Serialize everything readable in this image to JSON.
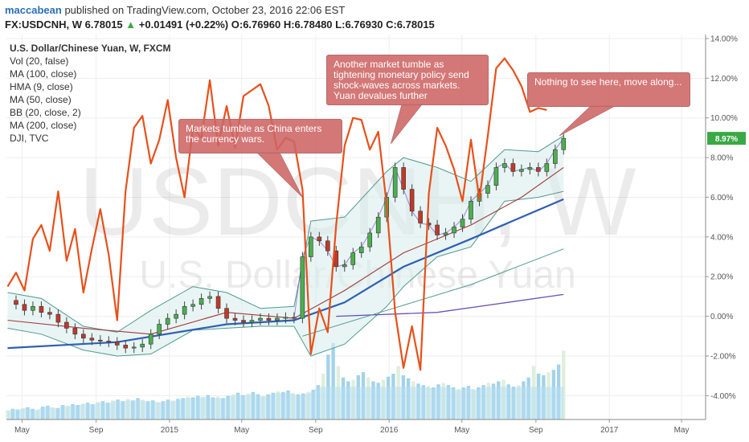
{
  "header": {
    "author": "maccabean",
    "published_text": "published on TradingView.com, October 23, 2016 22:06 EST",
    "symbol": "FX:USDCNH, W",
    "last": "6.78015",
    "change": "+0.01491 (+0.22%)",
    "o_label": "O:",
    "o_value": "6.76960",
    "h_label": "H:",
    "h_value": "6.78480",
    "l_label": "L:",
    "l_value": "6.76930",
    "c_label": "C:",
    "c_value": "6.78015"
  },
  "watermark": {
    "big": "USDCNH, W",
    "small": "U.S. Dollar/Chinese Yuan"
  },
  "indicators": [
    "U.S. Dollar/Chinese Yuan, W, FXCM",
    "Vol (20, false)",
    "MA (100, close)",
    "HMA (9, close)",
    "MA (50, close)",
    "BB (20, close, 2)",
    "MA (200, close)",
    "DJI, TVC"
  ],
  "annotations": [
    {
      "id": "a1",
      "text": "Markets tumble as China enters the currency wars."
    },
    {
      "id": "a2",
      "text": "Another market tumble as tightening monetary policy send shock-waves across markets. Yuan devalues further"
    },
    {
      "id": "a3",
      "text": "Nothing to see here, move along..."
    }
  ],
  "chart_data": {
    "type": "line",
    "y_axis": {
      "ticks": [
        "14.00%",
        "12.00%",
        "10.00%",
        "8.00%",
        "6.00%",
        "4.00%",
        "2.00%",
        "0.00%",
        "-2.00%",
        "-4.00%"
      ],
      "ylim": [
        -5.2,
        14.2
      ],
      "position": "right",
      "current_label": "8.97%"
    },
    "x_axis": {
      "ticks": [
        "May",
        "Sep",
        "2015",
        "May",
        "Sep",
        "2016",
        "May",
        "Sep",
        "2017",
        "May"
      ],
      "tick_dates": [
        "2014-05-01",
        "2014-09-01",
        "2015-01-01",
        "2015-05-01",
        "2015-09-01",
        "2016-01-01",
        "2016-05-01",
        "2016-09-01",
        "2017-01-01",
        "2017-05-01"
      ],
      "xlim": [
        "2014-04-05",
        "2017-06-10"
      ]
    },
    "colors": {
      "candle_up": "#4caf50",
      "candle_down": "#c0392b",
      "dji": "#e8501a",
      "ma100": "#2f5fb3",
      "ma200": "#6a52b5",
      "ma50": "#a33a3a",
      "bb": "#4f9a8f",
      "bb_fill": "#d8eeec",
      "hma": "#8a6ccf",
      "volume": "#93cbe6",
      "volume_area": "#b7def1",
      "last_label": "#3aa845"
    },
    "price_pct": [
      [
        "2014-04-07",
        0.8
      ],
      [
        "2014-04-21",
        0.6
      ],
      [
        "2014-05-05",
        0.3
      ],
      [
        "2014-05-19",
        0.5
      ],
      [
        "2014-06-02",
        0.2
      ],
      [
        "2014-06-16",
        0.1
      ],
      [
        "2014-06-30",
        -0.3
      ],
      [
        "2014-07-14",
        -0.6
      ],
      [
        "2014-07-28",
        -0.9
      ],
      [
        "2014-08-11",
        -1.1
      ],
      [
        "2014-08-25",
        -1.2
      ],
      [
        "2014-09-08",
        -1.25
      ],
      [
        "2014-09-22",
        -1.3
      ],
      [
        "2014-10-06",
        -1.45
      ],
      [
        "2014-10-20",
        -1.6
      ],
      [
        "2014-11-03",
        -1.55
      ],
      [
        "2014-11-17",
        -1.4
      ],
      [
        "2014-12-01",
        -0.9
      ],
      [
        "2014-12-15",
        -0.4
      ],
      [
        "2014-12-29",
        -0.1
      ],
      [
        "2015-01-12",
        0.1
      ],
      [
        "2015-01-26",
        0.5
      ],
      [
        "2015-02-09",
        0.6
      ],
      [
        "2015-02-23",
        0.9
      ],
      [
        "2015-03-09",
        1.0
      ],
      [
        "2015-03-23",
        0.4
      ],
      [
        "2015-04-06",
        -0.1
      ],
      [
        "2015-04-20",
        -0.2
      ],
      [
        "2015-05-04",
        -0.3
      ],
      [
        "2015-05-18",
        -0.2
      ],
      [
        "2015-06-01",
        -0.1
      ],
      [
        "2015-06-15",
        -0.2
      ],
      [
        "2015-06-29",
        -0.1
      ],
      [
        "2015-07-13",
        -0.05
      ],
      [
        "2015-07-27",
        -0.1
      ],
      [
        "2015-08-10",
        3.0
      ],
      [
        "2015-08-24",
        4.0
      ],
      [
        "2015-09-07",
        3.8
      ],
      [
        "2015-09-21",
        3.3
      ],
      [
        "2015-10-05",
        2.5
      ],
      [
        "2015-10-19",
        2.6
      ],
      [
        "2015-11-02",
        3.2
      ],
      [
        "2015-11-16",
        3.5
      ],
      [
        "2015-11-30",
        4.2
      ],
      [
        "2015-12-14",
        5.0
      ],
      [
        "2015-12-28",
        6.0
      ],
      [
        "2016-01-11",
        7.5
      ],
      [
        "2016-01-25",
        6.4
      ],
      [
        "2016-02-08",
        5.3
      ],
      [
        "2016-02-22",
        4.7
      ],
      [
        "2016-03-07",
        4.6
      ],
      [
        "2016-03-21",
        4.1
      ],
      [
        "2016-04-04",
        4.2
      ],
      [
        "2016-04-18",
        4.5
      ],
      [
        "2016-05-02",
        4.9
      ],
      [
        "2016-05-16",
        5.8
      ],
      [
        "2016-05-30",
        6.2
      ],
      [
        "2016-06-13",
        6.6
      ],
      [
        "2016-06-27",
        7.5
      ],
      [
        "2016-07-11",
        7.7
      ],
      [
        "2016-07-25",
        7.3
      ],
      [
        "2016-08-08",
        7.4
      ],
      [
        "2016-08-22",
        7.5
      ],
      [
        "2016-09-05",
        7.3
      ],
      [
        "2016-09-19",
        7.7
      ],
      [
        "2016-10-03",
        8.4
      ],
      [
        "2016-10-17",
        8.97
      ]
    ],
    "bb_upper_pct": [
      [
        "2014-04-07",
        1.2
      ],
      [
        "2014-06-02",
        0.9
      ],
      [
        "2014-08-11",
        -0.5
      ],
      [
        "2014-10-06",
        -0.8
      ],
      [
        "2014-12-01",
        0.3
      ],
      [
        "2015-02-09",
        1.5
      ],
      [
        "2015-04-06",
        1.2
      ],
      [
        "2015-06-01",
        0.4
      ],
      [
        "2015-07-27",
        0.5
      ],
      [
        "2015-08-24",
        4.8
      ],
      [
        "2015-10-19",
        5.0
      ],
      [
        "2015-12-28",
        7.3
      ],
      [
        "2016-01-25",
        8.0
      ],
      [
        "2016-03-21",
        7.5
      ],
      [
        "2016-05-16",
        6.8
      ],
      [
        "2016-07-11",
        8.4
      ],
      [
        "2016-09-05",
        8.3
      ],
      [
        "2016-10-17",
        9.1
      ]
    ],
    "bb_lower_pct": [
      [
        "2014-04-07",
        -0.6
      ],
      [
        "2014-06-02",
        -0.9
      ],
      [
        "2014-08-11",
        -1.7
      ],
      [
        "2014-10-06",
        -2.0
      ],
      [
        "2014-12-01",
        -1.9
      ],
      [
        "2015-02-09",
        -0.7
      ],
      [
        "2015-04-06",
        -0.6
      ],
      [
        "2015-06-01",
        -0.5
      ],
      [
        "2015-07-27",
        -0.5
      ],
      [
        "2015-08-24",
        -2.0
      ],
      [
        "2015-10-19",
        -1.4
      ],
      [
        "2015-12-28",
        0.5
      ],
      [
        "2016-01-25",
        1.5
      ],
      [
        "2016-03-21",
        3.0
      ],
      [
        "2016-05-16",
        3.5
      ],
      [
        "2016-07-11",
        5.8
      ],
      [
        "2016-09-05",
        6.0
      ],
      [
        "2016-10-17",
        6.3
      ]
    ],
    "ma50_pct": [
      [
        "2014-04-07",
        -0.2
      ],
      [
        "2014-08-11",
        -0.6
      ],
      [
        "2014-12-01",
        -0.9
      ],
      [
        "2015-04-06",
        0.2
      ],
      [
        "2015-07-27",
        -0.1
      ],
      [
        "2015-10-19",
        1.3
      ],
      [
        "2016-01-25",
        3.2
      ],
      [
        "2016-05-16",
        4.6
      ],
      [
        "2016-08-08",
        6.0
      ],
      [
        "2016-10-17",
        7.5
      ]
    ],
    "ma100_pct": [
      [
        "2014-04-07",
        -1.6
      ],
      [
        "2014-10-06",
        -1.3
      ],
      [
        "2015-04-06",
        -0.4
      ],
      [
        "2015-07-27",
        -0.2
      ],
      [
        "2015-10-19",
        0.7
      ],
      [
        "2016-01-25",
        2.5
      ],
      [
        "2016-05-16",
        3.9
      ],
      [
        "2016-08-08",
        5.0
      ],
      [
        "2016-10-17",
        5.9
      ]
    ],
    "ma200_pct": [
      [
        "2015-08-10",
        -1.0
      ],
      [
        "2015-12-28",
        0.3
      ],
      [
        "2016-05-16",
        1.6
      ],
      [
        "2016-10-17",
        3.4
      ]
    ],
    "ma200b_pct": [
      [
        "2015-10-05",
        0.0
      ],
      [
        "2016-03-21",
        0.2
      ],
      [
        "2016-10-17",
        1.1
      ]
    ],
    "dji_pct": [
      [
        "2014-04-07",
        1.5
      ],
      [
        "2014-04-21",
        2.2
      ],
      [
        "2014-05-05",
        1.3
      ],
      [
        "2014-05-19",
        3.9
      ],
      [
        "2014-06-02",
        4.6
      ],
      [
        "2014-06-16",
        3.3
      ],
      [
        "2014-06-30",
        6.3
      ],
      [
        "2014-07-14",
        2.8
      ],
      [
        "2014-07-28",
        4.4
      ],
      [
        "2014-08-11",
        1.2
      ],
      [
        "2014-08-25",
        3.4
      ],
      [
        "2014-09-08",
        5.4
      ],
      [
        "2014-09-22",
        3.1
      ],
      [
        "2014-10-06",
        -0.2
      ],
      [
        "2014-10-20",
        6.3
      ],
      [
        "2014-11-03",
        9.5
      ],
      [
        "2014-11-17",
        10.1
      ],
      [
        "2014-12-01",
        7.7
      ],
      [
        "2014-12-15",
        8.9
      ],
      [
        "2014-12-29",
        10.9
      ],
      [
        "2015-01-12",
        8.0
      ],
      [
        "2015-01-26",
        6.0
      ],
      [
        "2015-02-09",
        9.5
      ],
      [
        "2015-02-23",
        9.0
      ],
      [
        "2015-03-09",
        11.9
      ],
      [
        "2015-03-23",
        8.6
      ],
      [
        "2015-04-06",
        10.6
      ],
      [
        "2015-04-20",
        8.5
      ],
      [
        "2015-05-04",
        11.1
      ],
      [
        "2015-05-18",
        11.4
      ],
      [
        "2015-06-01",
        11.7
      ],
      [
        "2015-06-15",
        10.6
      ],
      [
        "2015-06-29",
        8.4
      ],
      [
        "2015-07-13",
        9.0
      ],
      [
        "2015-07-27",
        8.8
      ],
      [
        "2015-08-10",
        6.4
      ],
      [
        "2015-08-24",
        -1.9
      ],
      [
        "2015-09-07",
        0.4
      ],
      [
        "2015-09-21",
        -0.8
      ],
      [
        "2015-10-05",
        4.6
      ],
      [
        "2015-10-19",
        8.6
      ],
      [
        "2015-11-02",
        10.0
      ],
      [
        "2015-11-16",
        9.9
      ],
      [
        "2015-11-30",
        8.4
      ],
      [
        "2015-12-14",
        9.3
      ],
      [
        "2015-12-28",
        5.6
      ],
      [
        "2016-01-11",
        0.2
      ],
      [
        "2016-01-25",
        -2.6
      ],
      [
        "2016-02-08",
        -0.5
      ],
      [
        "2016-02-22",
        -2.7
      ],
      [
        "2016-03-07",
        6.2
      ],
      [
        "2016-03-21",
        9.5
      ],
      [
        "2016-04-04",
        8.6
      ],
      [
        "2016-04-18",
        7.4
      ],
      [
        "2016-05-02",
        5.8
      ],
      [
        "2016-05-16",
        8.9
      ],
      [
        "2016-05-30",
        5.9
      ],
      [
        "2016-06-13",
        9.1
      ],
      [
        "2016-06-27",
        12.5
      ],
      [
        "2016-07-11",
        13.0
      ],
      [
        "2016-07-25",
        12.4
      ],
      [
        "2016-08-08",
        11.6
      ],
      [
        "2016-08-22",
        10.3
      ],
      [
        "2016-09-05",
        10.5
      ],
      [
        "2016-09-19",
        10.4
      ]
    ],
    "volume_rel": [
      0.12,
      0.14,
      0.13,
      0.15,
      0.16,
      0.14,
      0.13,
      0.17,
      0.18,
      0.16,
      0.15,
      0.19,
      0.18,
      0.2,
      0.19,
      0.21,
      0.22,
      0.2,
      0.23,
      0.24,
      0.22,
      0.25,
      0.26,
      0.24,
      0.27,
      0.25,
      0.28,
      0.26,
      0.24,
      0.25,
      0.23,
      0.24,
      0.26,
      0.25,
      0.27,
      0.28,
      0.3,
      0.29,
      0.31,
      0.3,
      0.32,
      0.29,
      0.3,
      0.28,
      0.31,
      0.33,
      0.35,
      0.32,
      0.34,
      0.36,
      0.33,
      0.31,
      0.33,
      0.35,
      0.37,
      0.36,
      0.38,
      0.35,
      0.33,
      0.34,
      0.36,
      0.39,
      0.45,
      0.6,
      0.85,
      1.0,
      0.7,
      0.55,
      0.5,
      0.52,
      0.58,
      0.62,
      0.55,
      0.5,
      0.48,
      0.52,
      0.56,
      0.6,
      0.7,
      0.58,
      0.54,
      0.5,
      0.47,
      0.45,
      0.44,
      0.42,
      0.46,
      0.48,
      0.45,
      0.42,
      0.4,
      0.42,
      0.44,
      0.4,
      0.42,
      0.45,
      0.48,
      0.47,
      0.5,
      0.52,
      0.46,
      0.43,
      0.45,
      0.5,
      0.55,
      0.7,
      0.6,
      0.58,
      0.62,
      0.65,
      0.72,
      0.9
    ]
  }
}
